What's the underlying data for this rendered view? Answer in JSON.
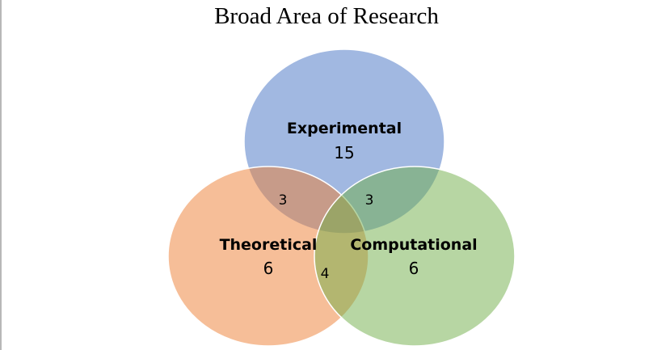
{
  "title": "Broad Area of Research",
  "sets": [
    {
      "label": "Experimental",
      "count": "15",
      "color": "#4472c4"
    },
    {
      "label": "Theoretical",
      "count": "6",
      "color": "#ed7d31"
    },
    {
      "label": "Computational",
      "count": "6",
      "color": "#70ad47"
    }
  ],
  "overlaps": {
    "experimental_theoretical": "3",
    "experimental_computational": "3",
    "theoretical_computational": "4"
  }
}
